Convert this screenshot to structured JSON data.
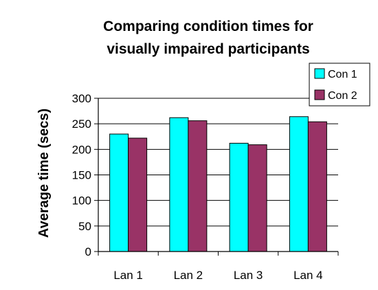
{
  "chart_data": {
    "type": "bar",
    "title_lines": [
      "Comparing condition times for",
      "visually impaired participants"
    ],
    "xlabel": "",
    "ylabel": "Average time (secs)",
    "categories": [
      "Lan 1",
      "Lan 2",
      "Lan 3",
      "Lan 4"
    ],
    "series": [
      {
        "name": "Con 1",
        "color": "#00ffff",
        "values": [
          230,
          262,
          212,
          264
        ]
      },
      {
        "name": "Con 2",
        "color": "#993366",
        "values": [
          222,
          256,
          209,
          254
        ]
      }
    ],
    "ylim": [
      0,
      300
    ],
    "yticks": [
      0,
      50,
      100,
      150,
      200,
      250,
      300
    ],
    "grid": true,
    "legend_position": "top-right"
  }
}
